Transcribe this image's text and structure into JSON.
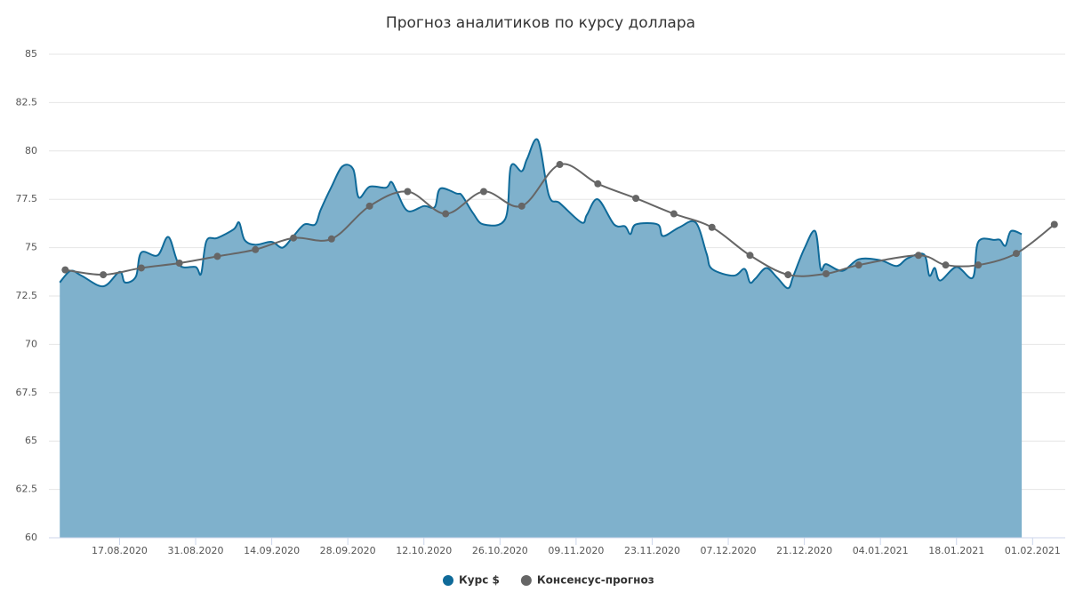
{
  "chart_data": {
    "type": "areaspline",
    "title": "Прогноз аналитиков по курсу доллара",
    "xlim": [
      "04.08.2020",
      "07.02.2021"
    ],
    "xticks": [
      "17.08.2020",
      "31.08.2020",
      "14.09.2020",
      "28.09.2020",
      "12.10.2020",
      "26.10.2020",
      "09.11.2020",
      "23.11.2020",
      "07.12.2020",
      "21.12.2020",
      "04.01.2021",
      "18.01.2021",
      "01.02.2021"
    ],
    "ylim": [
      60,
      85
    ],
    "yticks": [
      60,
      62.5,
      65,
      67.5,
      70,
      72.5,
      75,
      77.5,
      80,
      82.5,
      85
    ],
    "grid": true,
    "legend": "bottom",
    "series": [
      {
        "name": "Курс $",
        "type": "area",
        "color": "#0f6a99",
        "fill": "#7fb1cc",
        "x": [
          "06.08.2020",
          "08.08.2020",
          "10.08.2020",
          "14.08.2020",
          "17.08.2020",
          "18.08.2020",
          "20.08.2020",
          "21.08.2020",
          "24.08.2020",
          "26.08.2020",
          "28.08.2020",
          "31.08.2020",
          "01.09.2020",
          "02.09.2020",
          "04.09.2020",
          "07.09.2020",
          "08.09.2020",
          "09.09.2020",
          "11.09.2020",
          "14.09.2020",
          "16.09.2020",
          "18.09.2020",
          "20.09.2020",
          "22.09.2020",
          "23.09.2020",
          "25.09.2020",
          "27.09.2020",
          "29.09.2020",
          "30.09.2020",
          "02.10.2020",
          "05.10.2020",
          "06.10.2020",
          "07.10.2020",
          "09.10.2020",
          "12.10.2020",
          "14.10.2020",
          "15.10.2020",
          "18.10.2020",
          "19.10.2020",
          "21.10.2020",
          "23.10.2020",
          "27.10.2020",
          "28.10.2020",
          "30.10.2020",
          "31.10.2020",
          "02.11.2020",
          "04.11.2020",
          "06.11.2020",
          "10.11.2020",
          "11.11.2020",
          "13.11.2020",
          "16.11.2020",
          "18.11.2020",
          "19.11.2020",
          "20.11.2020",
          "24.11.2020",
          "25.11.2020",
          "28.11.2020",
          "01.12.2020",
          "03.12.2020",
          "04.12.2020",
          "08.12.2020",
          "10.12.2020",
          "11.12.2020",
          "12.12.2020",
          "14.12.2020",
          "16.12.2020",
          "18.12.2020",
          "19.12.2020",
          "21.12.2020",
          "23.12.2020",
          "24.12.2020",
          "25.12.2020",
          "28.12.2020",
          "31.12.2020",
          "04.01.2021",
          "07.01.2021",
          "09.01.2021",
          "12.01.2021",
          "13.01.2021",
          "14.01.2021",
          "15.01.2021",
          "18.01.2021",
          "21.01.2021",
          "22.01.2021",
          "25.01.2021",
          "26.01.2021",
          "27.01.2021",
          "28.01.2021",
          "30.01.2021"
        ],
        "values": [
          73.2,
          73.8,
          73.55,
          73.0,
          73.75,
          73.2,
          73.5,
          74.75,
          74.6,
          75.55,
          74.1,
          74.0,
          73.65,
          75.35,
          75.5,
          75.95,
          76.3,
          75.4,
          75.15,
          75.3,
          75.0,
          75.6,
          76.2,
          76.2,
          76.95,
          78.15,
          79.2,
          79.05,
          77.6,
          78.15,
          78.1,
          78.4,
          77.9,
          76.9,
          77.15,
          77.1,
          78.05,
          77.8,
          77.7,
          76.8,
          76.2,
          76.5,
          79.2,
          78.95,
          79.6,
          80.55,
          77.7,
          77.3,
          76.3,
          76.7,
          77.5,
          76.2,
          76.1,
          75.7,
          76.2,
          76.2,
          75.6,
          76.05,
          76.3,
          74.7,
          73.9,
          73.55,
          73.9,
          73.2,
          73.4,
          73.95,
          73.45,
          72.9,
          73.55,
          74.95,
          75.85,
          73.9,
          74.15,
          73.8,
          74.4,
          74.35,
          74.05,
          74.45,
          74.65,
          73.55,
          73.95,
          73.3,
          74.0,
          73.45,
          75.3,
          75.4,
          75.4,
          75.1,
          75.85,
          75.7
        ]
      },
      {
        "name": "Консенсус-прогноз",
        "type": "spline",
        "color": "#666666",
        "x": [
          "07.08.2020",
          "14.08.2020",
          "21.08.2020",
          "28.08.2020",
          "04.09.2020",
          "11.09.2020",
          "18.09.2020",
          "25.09.2020",
          "02.10.2020",
          "09.10.2020",
          "16.10.2020",
          "23.10.2020",
          "30.10.2020",
          "06.11.2020",
          "13.11.2020",
          "20.11.2020",
          "27.11.2020",
          "04.12.2020",
          "11.12.2020",
          "18.12.2020",
          "25.12.2020",
          "31.12.2020",
          "11.01.2021",
          "16.01.2021",
          "22.01.2021",
          "29.01.2021",
          "05.02.2021"
        ],
        "values": [
          73.85,
          73.6,
          73.95,
          74.2,
          74.55,
          74.9,
          75.5,
          75.45,
          77.15,
          77.9,
          76.75,
          77.9,
          77.15,
          79.3,
          78.3,
          77.55,
          76.75,
          76.05,
          74.6,
          73.6,
          73.65,
          74.1,
          74.6,
          74.1,
          74.1,
          74.7,
          76.2
        ]
      }
    ]
  }
}
